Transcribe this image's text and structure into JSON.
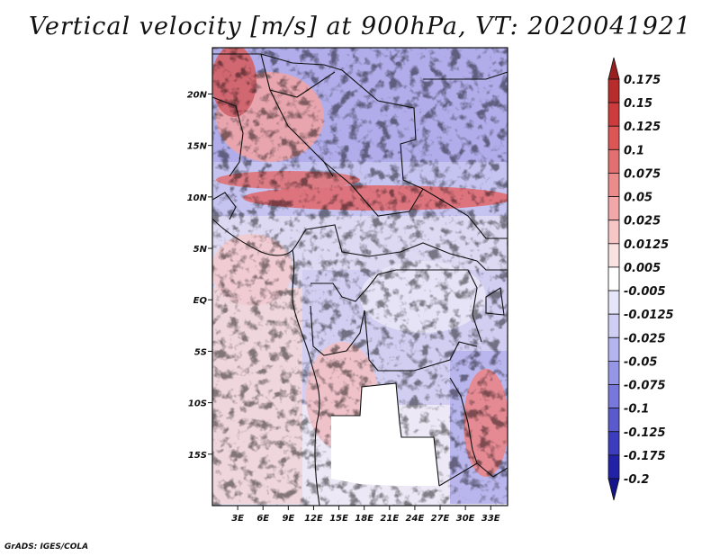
{
  "title": "Vertical velocity [m/s] at 900hPa, VT: 2020041921",
  "credit": "GrADS: IGES/COLA",
  "map": {
    "lat_range": [
      -20,
      24.5
    ],
    "lon_range": [
      0,
      35
    ],
    "y_ticks": [
      "20N",
      "15N",
      "10N",
      "5N",
      "EQ",
      "5S",
      "10S",
      "15S"
    ],
    "y_tick_values": [
      20,
      15,
      10,
      5,
      0,
      -5,
      -10,
      -15
    ],
    "x_ticks": [
      "3E",
      "6E",
      "9E",
      "12E",
      "15E",
      "18E",
      "21E",
      "24E",
      "27E",
      "30E",
      "33E"
    ],
    "x_tick_values": [
      3,
      6,
      9,
      12,
      15,
      18,
      21,
      24,
      27,
      30,
      33
    ]
  },
  "colorbar": {
    "labels": [
      "0.175",
      "0.15",
      "0.125",
      "0.1",
      "0.075",
      "0.05",
      "0.025",
      "0.0125",
      "0.005",
      "-0.005",
      "-0.0125",
      "-0.025",
      "-0.05",
      "-0.075",
      "-0.1",
      "-0.125",
      "-0.175",
      "-0.2"
    ],
    "colors": [
      "#9a1f1f",
      "#b82c2c",
      "#cc3c3c",
      "#dc5656",
      "#e37070",
      "#eb8c8c",
      "#f2a8a8",
      "#f7c6c6",
      "#fbe2e2",
      "#ffffff",
      "#e6e6fa",
      "#cfcff5",
      "#b4b4ef",
      "#9696e6",
      "#7878dc",
      "#5a5acd",
      "#3c3cbf",
      "#2222a6",
      "#14148c"
    ]
  }
}
